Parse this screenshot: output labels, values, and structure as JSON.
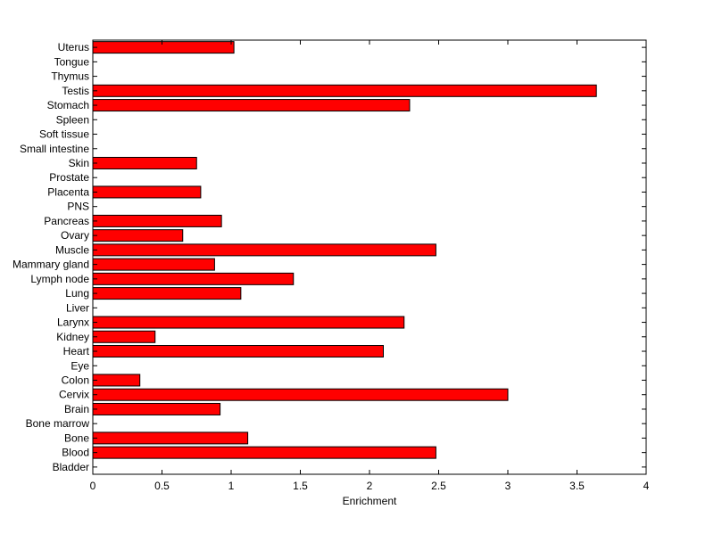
{
  "chart_data": {
    "type": "bar",
    "orientation": "horizontal",
    "categories": [
      "Bladder",
      "Blood",
      "Bone",
      "Bone marrow",
      "Brain",
      "Cervix",
      "Colon",
      "Eye",
      "Heart",
      "Kidney",
      "Larynx",
      "Liver",
      "Lung",
      "Lymph node",
      "Mammary gland",
      "Muscle",
      "Ovary",
      "Pancreas",
      "PNS",
      "Placenta",
      "Prostate",
      "Skin",
      "Small intestine",
      "Soft tissue",
      "Spleen",
      "Stomach",
      "Testis",
      "Thymus",
      "Tongue",
      "Uterus"
    ],
    "values": [
      0,
      2.48,
      1.12,
      0,
      0.92,
      3.0,
      0.34,
      0,
      2.1,
      0.45,
      2.25,
      0,
      1.07,
      1.45,
      0.88,
      2.48,
      0.65,
      0.93,
      0,
      0.78,
      0,
      0.75,
      0,
      0,
      0,
      2.29,
      3.64,
      0,
      0,
      1.02
    ],
    "xlabel": "Enrichment",
    "ylabel": "",
    "title": "",
    "xlim": [
      0,
      4
    ],
    "xticks": [
      0,
      0.5,
      1,
      1.5,
      2,
      2.5,
      3,
      3.5,
      4
    ],
    "xtick_labels": [
      "0",
      "0.5",
      "1",
      "1.5",
      "2",
      "2.5",
      "3",
      "3.5",
      "4"
    ],
    "bar_color": "#ff0000",
    "bar_edge_color": "#000000",
    "grid": false
  }
}
